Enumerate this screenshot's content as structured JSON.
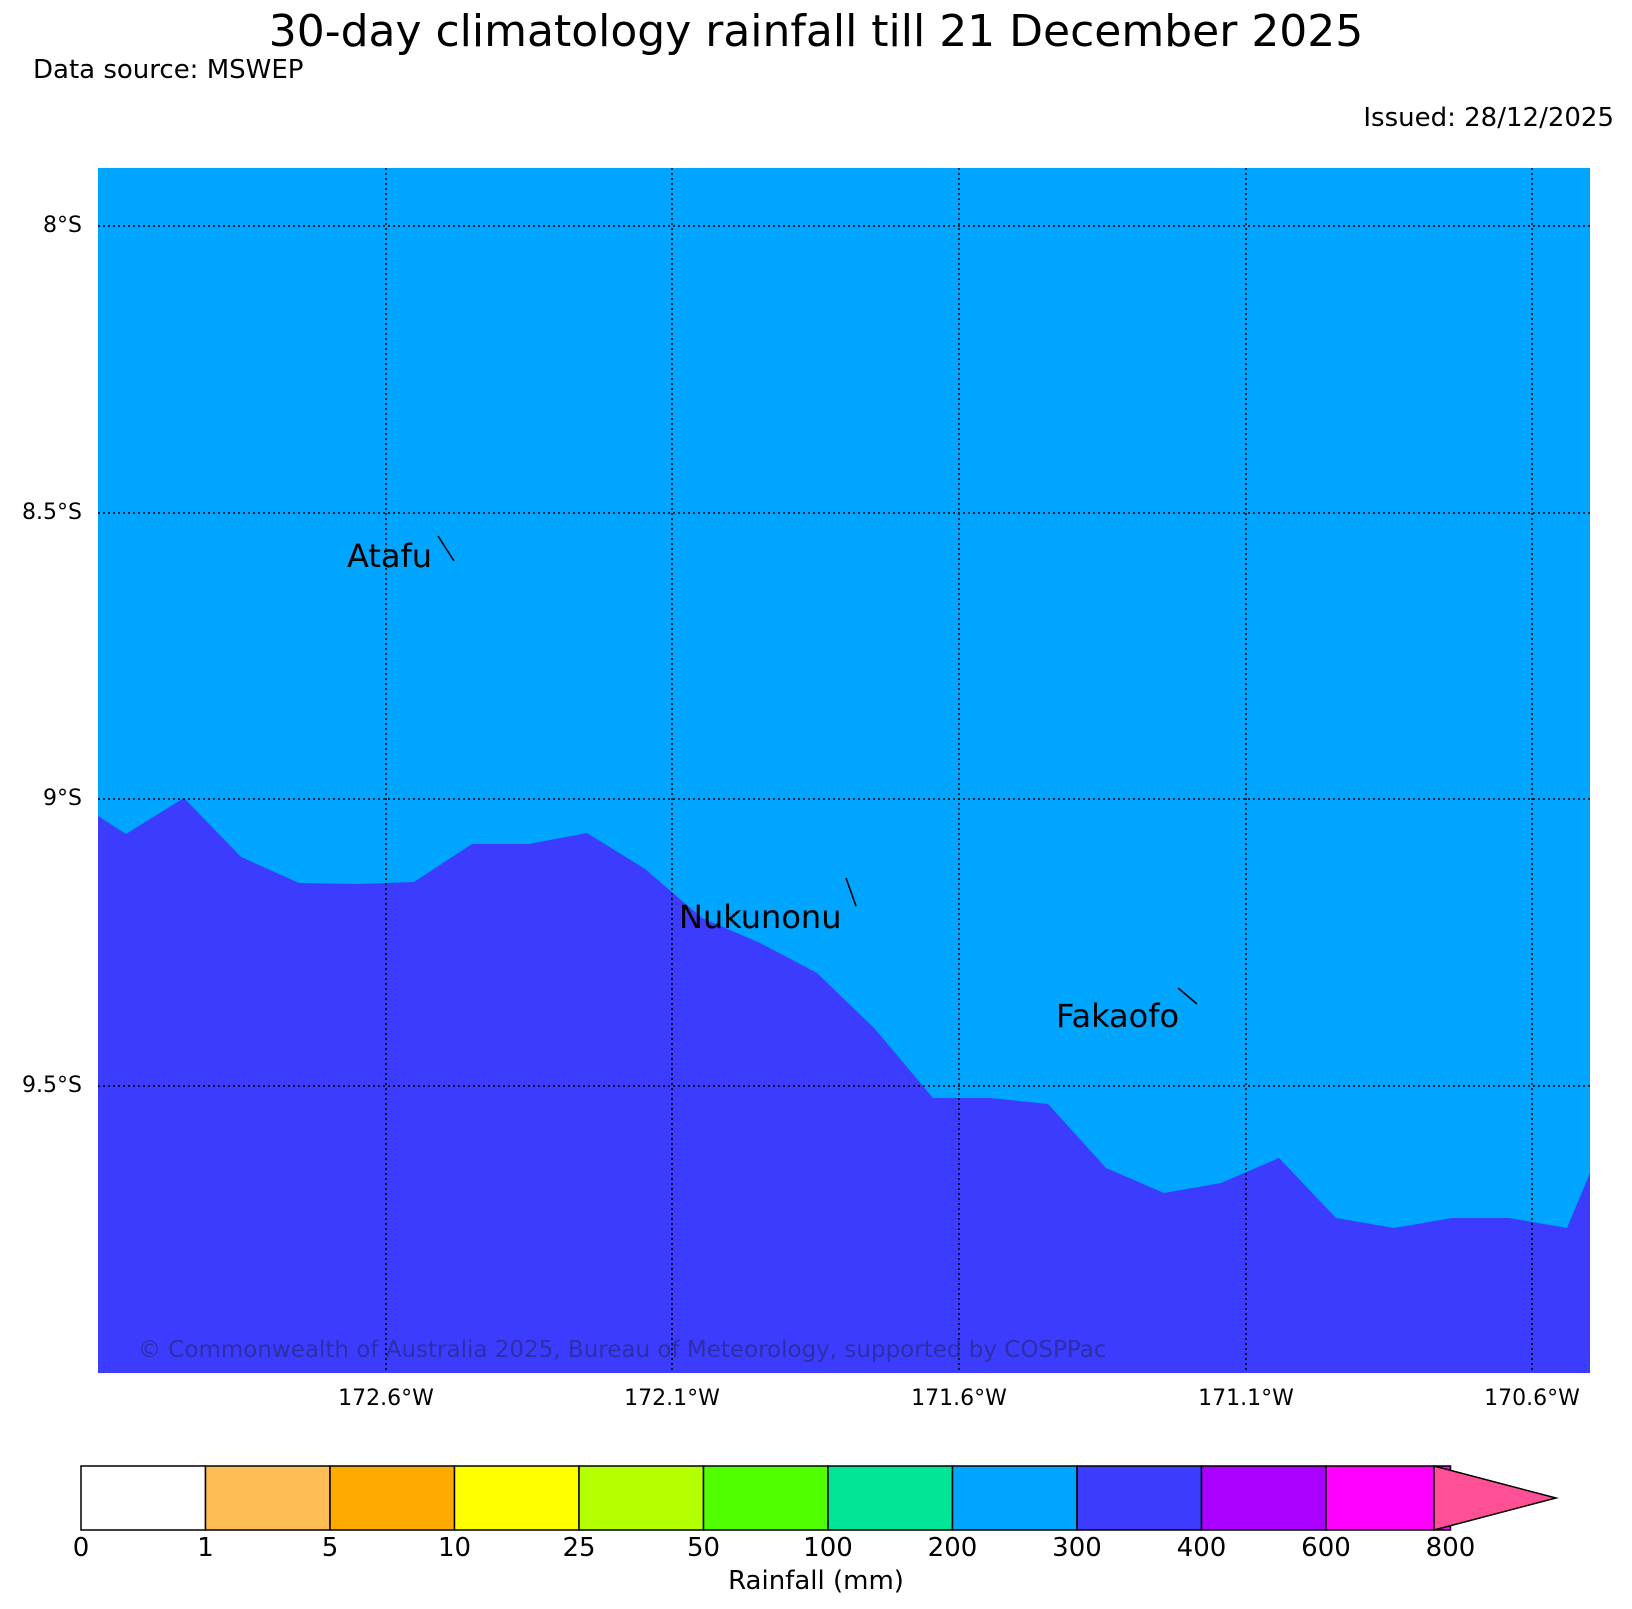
{
  "header": {
    "title": "30-day climatology rainfall till 21 December 2025",
    "source": "Data source: MSWEP",
    "issued": "Issued: 28/12/2025"
  },
  "map": {
    "latitude_labels": [
      "8°S",
      "8.5°S",
      "9°S",
      "9.5°S"
    ],
    "longitude_labels": [
      "172.6°W",
      "172.1°W",
      "171.6°W",
      "171.1°W",
      "170.6°W"
    ],
    "places": [
      "Atafu",
      "Nukunonu",
      "Fakaofo"
    ],
    "copyright": "© Commonwealth of Australia 2025, Bureau of Meteorology, supported by COSPPac",
    "fill_colors": {
      "class_200_300": "#00a5ff",
      "class_300_400": "#3c3cff"
    }
  },
  "colorbar": {
    "label": "Rainfall (mm)",
    "ticks": [
      "0",
      "1",
      "5",
      "10",
      "25",
      "50",
      "100",
      "200",
      "300",
      "400",
      "600",
      "800"
    ],
    "colors": [
      "#ffffff",
      "#ffbe55",
      "#ffaa00",
      "#ffff00",
      "#b4ff00",
      "#50ff00",
      "#00e696",
      "#00a5ff",
      "#3c3cff",
      "#aa00ff",
      "#ff00ff",
      "#ff5096"
    ]
  }
}
